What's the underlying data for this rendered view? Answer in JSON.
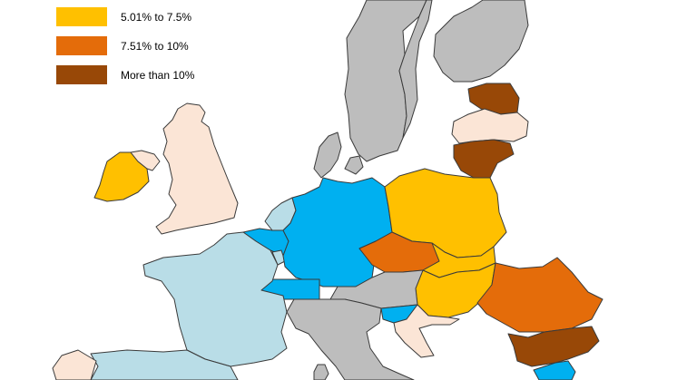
{
  "colors": {
    "sea": "#ffffff",
    "border": "#3a3a3a",
    "no_data": "#bdbdbd",
    "light_blue": "#b9dde7",
    "blue": "#00b0f0",
    "pale": "#fbe5d6",
    "yellow": "#ffc000",
    "orange": "#e46c0a",
    "brown": "#984807"
  },
  "legend": {
    "items": [
      {
        "label": "5.01% to 7.5%",
        "color": "#ffc000"
      },
      {
        "label": "7.51% to 10%",
        "color": "#e46c0a"
      },
      {
        "label": "More than 10%",
        "color": "#984807"
      }
    ]
  },
  "regions": [
    {
      "name": "Norway",
      "color": "#bdbdbd"
    },
    {
      "name": "Sweden",
      "color": "#bdbdbd"
    },
    {
      "name": "Finland",
      "color": "#bdbdbd"
    },
    {
      "name": "Estonia",
      "color": "#984807"
    },
    {
      "name": "Latvia",
      "color": "#fbe5d6"
    },
    {
      "name": "Lithuania",
      "color": "#984807"
    },
    {
      "name": "Denmark",
      "color": "#bdbdbd"
    },
    {
      "name": "Ireland",
      "color": "#ffc000"
    },
    {
      "name": "Northern Ireland",
      "color": "#fbe5d6"
    },
    {
      "name": "United Kingdom",
      "color": "#fbe5d6"
    },
    {
      "name": "Netherlands",
      "color": "#b9dde7"
    },
    {
      "name": "Belgium",
      "color": "#00b0f0"
    },
    {
      "name": "Luxembourg",
      "color": "#b9dde7"
    },
    {
      "name": "Germany",
      "color": "#00b0f0"
    },
    {
      "name": "Poland",
      "color": "#ffc000"
    },
    {
      "name": "Czech Republic",
      "color": "#e46c0a"
    },
    {
      "name": "Slovakia",
      "color": "#ffc000"
    },
    {
      "name": "Hungary",
      "color": "#ffc000"
    },
    {
      "name": "Austria",
      "color": "#bdbdbd"
    },
    {
      "name": "Switzerland",
      "color": "#00b0f0"
    },
    {
      "name": "France",
      "color": "#b9dde7"
    },
    {
      "name": "Italy",
      "color": "#bdbdbd"
    },
    {
      "name": "Slovenia",
      "color": "#00b0f0"
    },
    {
      "name": "Croatia",
      "color": "#fbe5d6"
    },
    {
      "name": "Romania",
      "color": "#e46c0a"
    },
    {
      "name": "Bulgaria",
      "color": "#984807"
    },
    {
      "name": "Spain",
      "color": "#b9dde7"
    },
    {
      "name": "Portugal",
      "color": "#fbe5d6"
    },
    {
      "name": "Sardinia",
      "color": "#bdbdbd"
    },
    {
      "name": "Greece",
      "color": "#00b0f0"
    }
  ]
}
